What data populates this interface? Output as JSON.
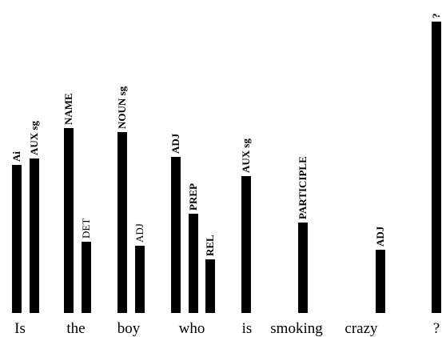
{
  "chart_data": {
    "type": "bar",
    "title": "",
    "xlabel": "",
    "ylabel": "",
    "ylim": [
      0,
      370
    ],
    "grid": false,
    "legend": "none",
    "bar_color": "#000000",
    "categories": [
      "Is",
      "the",
      "boy",
      "who",
      "is",
      "smoking",
      "crazy",
      "?"
    ],
    "bars": [
      {
        "category": "Is",
        "label": "Ai",
        "value": 185,
        "bold": true
      },
      {
        "category": "Is",
        "label": "AUX sg",
        "value": 193,
        "bold": true
      },
      {
        "category": "the",
        "label": "NAME",
        "value": 231,
        "bold": true
      },
      {
        "category": "the",
        "label": "DET",
        "value": 89,
        "bold": false
      },
      {
        "category": "boy",
        "label": "NOUN sg",
        "value": 226,
        "bold": true
      },
      {
        "category": "boy",
        "label": "ADJ",
        "value": 84,
        "bold": false
      },
      {
        "category": "who",
        "label": "ADJ",
        "value": 195,
        "bold": true
      },
      {
        "category": "who",
        "label": "PREP",
        "value": 124,
        "bold": true
      },
      {
        "category": "who",
        "label": "REL",
        "value": 67,
        "bold": true
      },
      {
        "category": "is",
        "label": "AUX sg",
        "value": 171,
        "bold": true
      },
      {
        "category": "smoking",
        "label": "PARTICIPLE",
        "value": 113,
        "bold": true
      },
      {
        "category": "crazy",
        "label": "ADJ",
        "value": 79,
        "bold": true
      },
      {
        "category": "?",
        "label": "?",
        "value": 364,
        "bold": true
      }
    ]
  }
}
